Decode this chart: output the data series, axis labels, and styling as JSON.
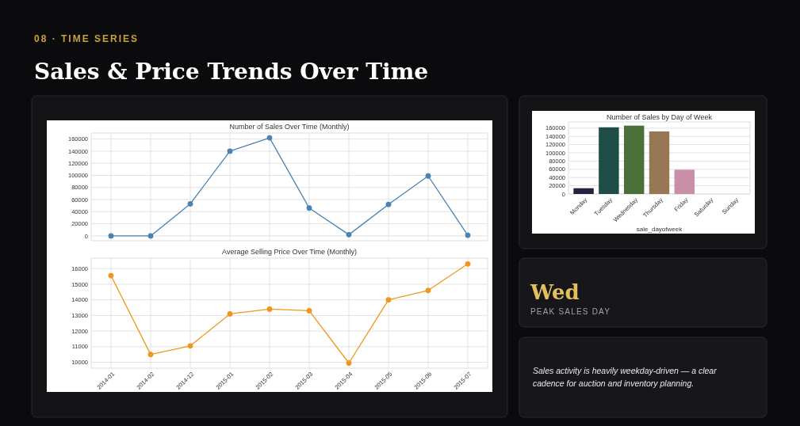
{
  "chart_data": [
    {
      "type": "other",
      "title": "Sales & Price Trends Over Time",
      "subtitle": "08 · TIME SERIES"
    },
    {
      "type": "line",
      "title": "Number of Sales Over Time (Monthly)",
      "categories": [
        null,
        null,
        null,
        null,
        null,
        null,
        null,
        null,
        null,
        null
      ],
      "series": [
        {
          "color": "#4a82b4",
          "values": [
            0,
            0,
            53000,
            140000,
            162000,
            46000,
            2000,
            52000,
            99000,
            1000
          ]
        }
      ],
      "ylim": [
        -8000,
        170000
      ],
      "yticks": [
        0,
        20000,
        40000,
        60000,
        80000,
        100000,
        120000,
        140000,
        160000
      ],
      "grid": true,
      "marker": "circle",
      "tick_labels": "y"
    },
    {
      "type": "line",
      "title": "Average Selling Price Over Time (Monthly)",
      "categories": [
        "2014-01",
        "2014-02",
        "2014-12",
        "2015-01",
        "2015-02",
        "2015-03",
        "2015-04",
        "2015-05",
        "2015-06",
        "2015-07"
      ],
      "series": [
        {
          "color": "#f0961e",
          "values": [
            15550,
            10500,
            11050,
            13100,
            13400,
            13300,
            9950,
            14000,
            14600,
            16300
          ]
        }
      ],
      "ylim": [
        9620,
        16670
      ],
      "yticks": [
        10000,
        11000,
        12000,
        13000,
        14000,
        15000,
        16000
      ],
      "grid": true,
      "marker": "circle"
    },
    {
      "type": "bar",
      "title": "Number of Sales by Day of Week",
      "xlabel": "sale_dayofweek",
      "categories": [
        "Monday",
        "Tuesday",
        "Wednesday",
        "Thursday",
        "Friday",
        "Saturday",
        "Sunday"
      ],
      "values": [
        14000,
        162000,
        166000,
        152000,
        59000,
        0,
        0
      ],
      "colors": [
        "#23223f",
        "#1f4e46",
        "#4a7039",
        "#987755",
        "#c98fa8",
        "#888888",
        "#888888"
      ],
      "ylim": [
        0,
        175000
      ],
      "yticks": [
        0,
        20000,
        40000,
        60000,
        80000,
        100000,
        120000,
        140000,
        160000
      ],
      "grid": "y"
    },
    {
      "type": "other",
      "title": "Wed",
      "subtitle": "PEAK SALES DAY"
    },
    {
      "type": "other",
      "annotations": [
        "Sales activity is heavily weekday-driven — a clear cadence for auction and inventory planning."
      ]
    }
  ]
}
